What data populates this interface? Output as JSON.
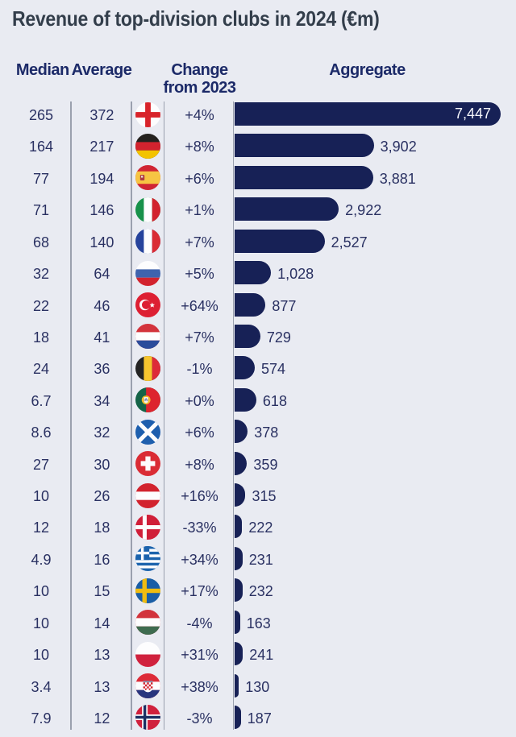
{
  "title": "Revenue of top-division clubs in 2024 (€m)",
  "header": {
    "median": "Median",
    "average": "Average",
    "change_line1": "Change",
    "change_line2": "from 2023",
    "aggregate": "Aggregate"
  },
  "colors": {
    "background": "#e9ebf2",
    "bar": "#172156",
    "title_text": "#333e4b",
    "header_text": "#1c2a68",
    "value_text": "#2a3162",
    "bar_label_inside": "#f4f5fa",
    "separator_line": "#9aa0ae"
  },
  "chart_data": {
    "type": "bar",
    "orientation": "horizontal",
    "title": "Revenue of top-division clubs in 2024 (€m)",
    "value_label": "Aggregate",
    "xlim": [
      0,
      7800
    ],
    "columns": [
      "Median",
      "Average",
      "flag",
      "Change from 2023",
      "Aggregate"
    ],
    "rows": [
      {
        "country": "England",
        "flag": "england",
        "median": "265",
        "average": "372",
        "change": "+4%",
        "aggregate": 7447,
        "aggregate_label": "7,447",
        "label_inside": true
      },
      {
        "country": "Germany",
        "flag": "germany",
        "median": "164",
        "average": "217",
        "change": "+8%",
        "aggregate": 3902,
        "aggregate_label": "3,902"
      },
      {
        "country": "Spain",
        "flag": "spain",
        "median": "77",
        "average": "194",
        "change": "+6%",
        "aggregate": 3881,
        "aggregate_label": "3,881"
      },
      {
        "country": "Italy",
        "flag": "italy",
        "median": "71",
        "average": "146",
        "change": "+1%",
        "aggregate": 2922,
        "aggregate_label": "2,922"
      },
      {
        "country": "France",
        "flag": "france",
        "median": "68",
        "average": "140",
        "change": "+7%",
        "aggregate": 2527,
        "aggregate_label": "2,527"
      },
      {
        "country": "Russia",
        "flag": "russia",
        "median": "32",
        "average": "64",
        "change": "+5%",
        "aggregate": 1028,
        "aggregate_label": "1,028"
      },
      {
        "country": "Turkey",
        "flag": "turkey",
        "median": "22",
        "average": "46",
        "change": "+64%",
        "aggregate": 877,
        "aggregate_label": "877"
      },
      {
        "country": "Netherlands",
        "flag": "netherlands",
        "median": "18",
        "average": "41",
        "change": "+7%",
        "aggregate": 729,
        "aggregate_label": "729"
      },
      {
        "country": "Belgium",
        "flag": "belgium",
        "median": "24",
        "average": "36",
        "change": "-1%",
        "aggregate": 574,
        "aggregate_label": "574"
      },
      {
        "country": "Portugal",
        "flag": "portugal",
        "median": "6.7",
        "average": "34",
        "change": "+0%",
        "aggregate": 618,
        "aggregate_label": "618"
      },
      {
        "country": "Scotland",
        "flag": "scotland",
        "median": "8.6",
        "average": "32",
        "change": "+6%",
        "aggregate": 378,
        "aggregate_label": "378"
      },
      {
        "country": "Switzerland",
        "flag": "switzerland",
        "median": "27",
        "average": "30",
        "change": "+8%",
        "aggregate": 359,
        "aggregate_label": "359"
      },
      {
        "country": "Austria",
        "flag": "austria",
        "median": "10",
        "average": "26",
        "change": "+16%",
        "aggregate": 315,
        "aggregate_label": "315"
      },
      {
        "country": "Denmark",
        "flag": "denmark",
        "median": "12",
        "average": "18",
        "change": "-33%",
        "aggregate": 222,
        "aggregate_label": "222"
      },
      {
        "country": "Greece",
        "flag": "greece",
        "median": "4.9",
        "average": "16",
        "change": "+34%",
        "aggregate": 231,
        "aggregate_label": "231"
      },
      {
        "country": "Sweden",
        "flag": "sweden",
        "median": "10",
        "average": "15",
        "change": "+17%",
        "aggregate": 232,
        "aggregate_label": "232"
      },
      {
        "country": "Hungary",
        "flag": "hungary",
        "median": "10",
        "average": "14",
        "change": "-4%",
        "aggregate": 163,
        "aggregate_label": "163"
      },
      {
        "country": "Poland",
        "flag": "poland",
        "median": "10",
        "average": "13",
        "change": "+31%",
        "aggregate": 241,
        "aggregate_label": "241"
      },
      {
        "country": "Croatia",
        "flag": "croatia",
        "median": "3.4",
        "average": "13",
        "change": "+38%",
        "aggregate": 130,
        "aggregate_label": "130"
      },
      {
        "country": "Norway",
        "flag": "norway",
        "median": "7.9",
        "average": "12",
        "change": "-3%",
        "aggregate": 187,
        "aggregate_label": "187"
      }
    ]
  }
}
